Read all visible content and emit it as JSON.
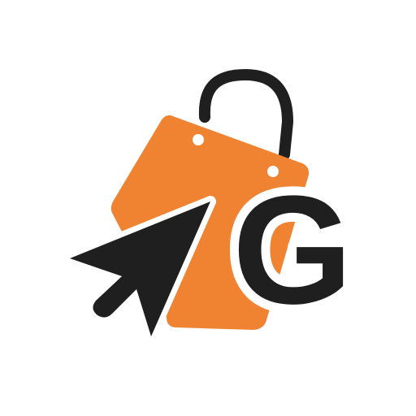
{
  "logo": {
    "letter": "G",
    "icons": {
      "bag": "shopping-bag-icon",
      "cursor": "cursor-arrow-icon"
    },
    "colors": {
      "background": "#ffffff",
      "bag": "#F08332",
      "ink": "#1f1f1f",
      "outline": "#ffffff"
    }
  }
}
